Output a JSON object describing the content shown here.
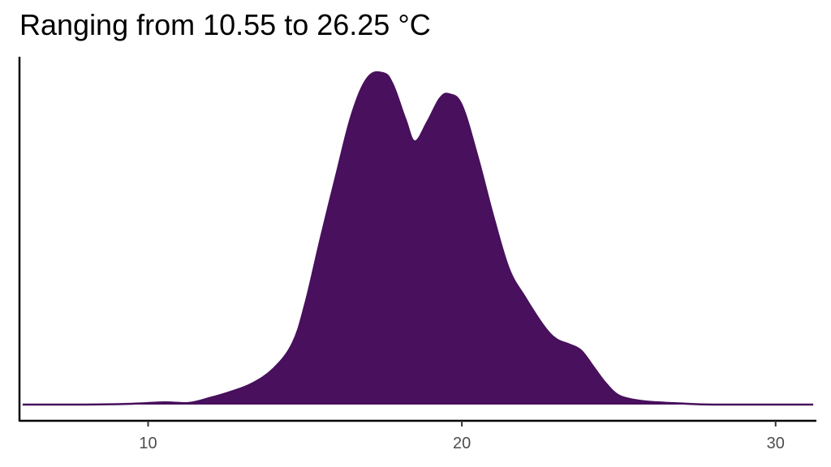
{
  "chart_data": {
    "type": "area",
    "subtype": "density",
    "title": "Ranging from 10.55 to 26.25 °C",
    "xlabel": "",
    "ylabel": "",
    "xlim": [
      5.9,
      31.3
    ],
    "ylim": [
      0,
      0.12
    ],
    "x_ticks": [
      10,
      20,
      30
    ],
    "fill_color": "#48105d",
    "line_color": "#48105d",
    "grid": false,
    "legend": "none",
    "series": [
      {
        "x": [
          6.0,
          8.0,
          9.5,
          10.5,
          11.3,
          12.0,
          12.6,
          13.3,
          14.0,
          14.6,
          15.0,
          15.5,
          16.0,
          16.5,
          17.0,
          17.5,
          17.8,
          18.2,
          18.5,
          18.9,
          19.3,
          19.6,
          20.0,
          20.5,
          21.0,
          21.5,
          22.0,
          22.6,
          23.0,
          23.4,
          23.8,
          24.2,
          24.6,
          25.0,
          25.5,
          26.0,
          27.0,
          28.0,
          30.0,
          31.2
        ],
        "y": [
          0.0,
          0.0,
          0.0003,
          0.0008,
          0.0006,
          0.0025,
          0.0045,
          0.0075,
          0.013,
          0.022,
          0.036,
          0.06,
          0.083,
          0.105,
          0.118,
          0.1196,
          0.1155,
          0.103,
          0.095,
          0.102,
          0.1105,
          0.112,
          0.108,
          0.0895,
          0.068,
          0.049,
          0.039,
          0.0285,
          0.0237,
          0.0218,
          0.0195,
          0.0135,
          0.0075,
          0.0033,
          0.0017,
          0.001,
          0.0004,
          0.0,
          0.0,
          0.0
        ]
      }
    ]
  }
}
